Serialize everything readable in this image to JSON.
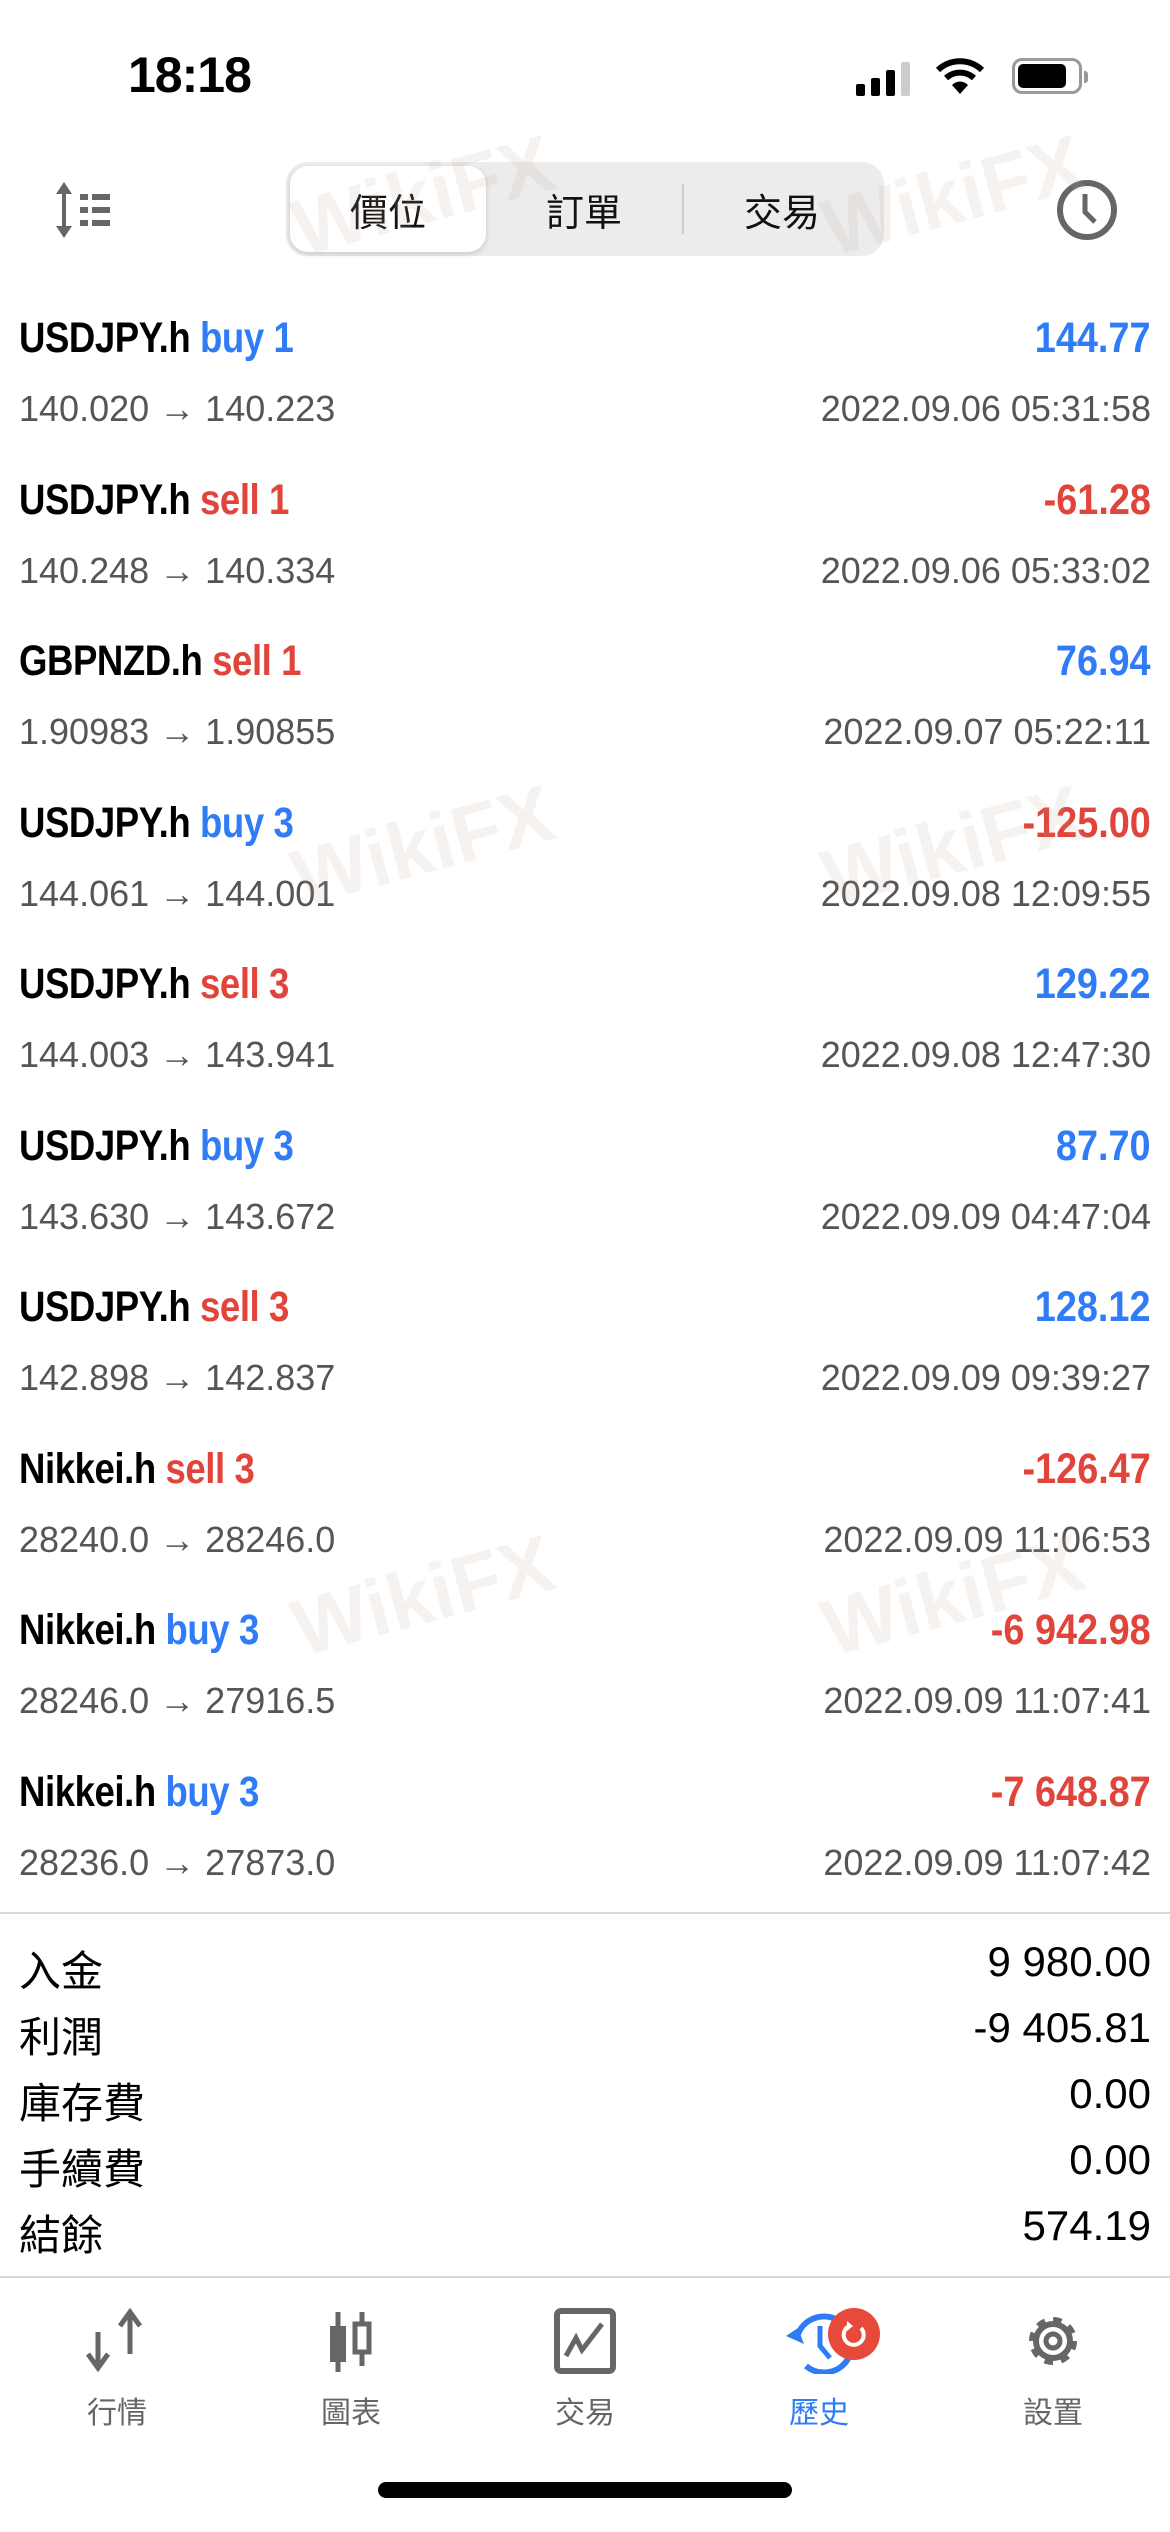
{
  "status_bar": {
    "time": "18:18"
  },
  "header": {
    "segments": [
      {
        "label": "價位",
        "active": true
      },
      {
        "label": "訂單"
      },
      {
        "label": "交易"
      }
    ],
    "left_icon": "sort-list-icon",
    "right_icon": "clock-icon"
  },
  "trades": [
    {
      "symbol": "USDJPY.h",
      "side": "buy 1",
      "type": "buy",
      "open": "140.020",
      "close": "140.223",
      "profit": "144.77",
      "profit_positive": true,
      "datetime": "2022.09.06 05:31:58"
    },
    {
      "symbol": "USDJPY.h",
      "side": "sell 1",
      "type": "sell",
      "open": "140.248",
      "close": "140.334",
      "profit": "-61.28",
      "profit_positive": false,
      "datetime": "2022.09.06 05:33:02"
    },
    {
      "symbol": "GBPNZD.h",
      "side": "sell 1",
      "type": "sell",
      "open": "1.90983",
      "close": "1.90855",
      "profit": "76.94",
      "profit_positive": true,
      "datetime": "2022.09.07 05:22:11"
    },
    {
      "symbol": "USDJPY.h",
      "side": "buy 3",
      "type": "buy",
      "open": "144.061",
      "close": "144.001",
      "profit": "-125.00",
      "profit_positive": false,
      "datetime": "2022.09.08 12:09:55"
    },
    {
      "symbol": "USDJPY.h",
      "side": "sell 3",
      "type": "sell",
      "open": "144.003",
      "close": "143.941",
      "profit": "129.22",
      "profit_positive": true,
      "datetime": "2022.09.08 12:47:30"
    },
    {
      "symbol": "USDJPY.h",
      "side": "buy 3",
      "type": "buy",
      "open": "143.630",
      "close": "143.672",
      "profit": "87.70",
      "profit_positive": true,
      "datetime": "2022.09.09 04:47:04"
    },
    {
      "symbol": "USDJPY.h",
      "side": "sell 3",
      "type": "sell",
      "open": "142.898",
      "close": "142.837",
      "profit": "128.12",
      "profit_positive": true,
      "datetime": "2022.09.09 09:39:27"
    },
    {
      "symbol": "Nikkei.h",
      "side": "sell 3",
      "type": "sell",
      "open": "28240.0",
      "close": "28246.0",
      "profit": "-126.47",
      "profit_positive": false,
      "datetime": "2022.09.09 11:06:53"
    },
    {
      "symbol": "Nikkei.h",
      "side": "buy 3",
      "type": "buy",
      "open": "28246.0",
      "close": "27916.5",
      "profit": "-6 942.98",
      "profit_positive": false,
      "datetime": "2022.09.09 11:07:41"
    },
    {
      "symbol": "Nikkei.h",
      "side": "buy 3",
      "type": "buy",
      "open": "28236.0",
      "close": "27873.0",
      "profit": "-7 648.87",
      "profit_positive": false,
      "datetime": "2022.09.09 11:07:42"
    }
  ],
  "arrow": "→",
  "summary": [
    {
      "label": "入金",
      "value": "9 980.00"
    },
    {
      "label": "利潤",
      "value": "-9 405.81"
    },
    {
      "label": "庫存費",
      "value": "0.00"
    },
    {
      "label": "手續費",
      "value": "0.00"
    },
    {
      "label": "結餘",
      "value": "574.19"
    }
  ],
  "tabbar": [
    {
      "label": "行情",
      "icon": "quotes-arrows-icon"
    },
    {
      "label": "圖表",
      "icon": "candlestick-chart-icon"
    },
    {
      "label": "交易",
      "icon": "trade-chart-icon"
    },
    {
      "label": "歷史",
      "icon": "history-icon",
      "active": true,
      "badge_icon": "refresh-icon"
    },
    {
      "label": "設置",
      "icon": "settings-gear-icon"
    }
  ],
  "colors": {
    "buy": "#2f7cf6",
    "sell": "#e0443a",
    "active_tab": "#2f7cf6",
    "badge": "#e64a3b"
  },
  "watermark": "WikiFX"
}
